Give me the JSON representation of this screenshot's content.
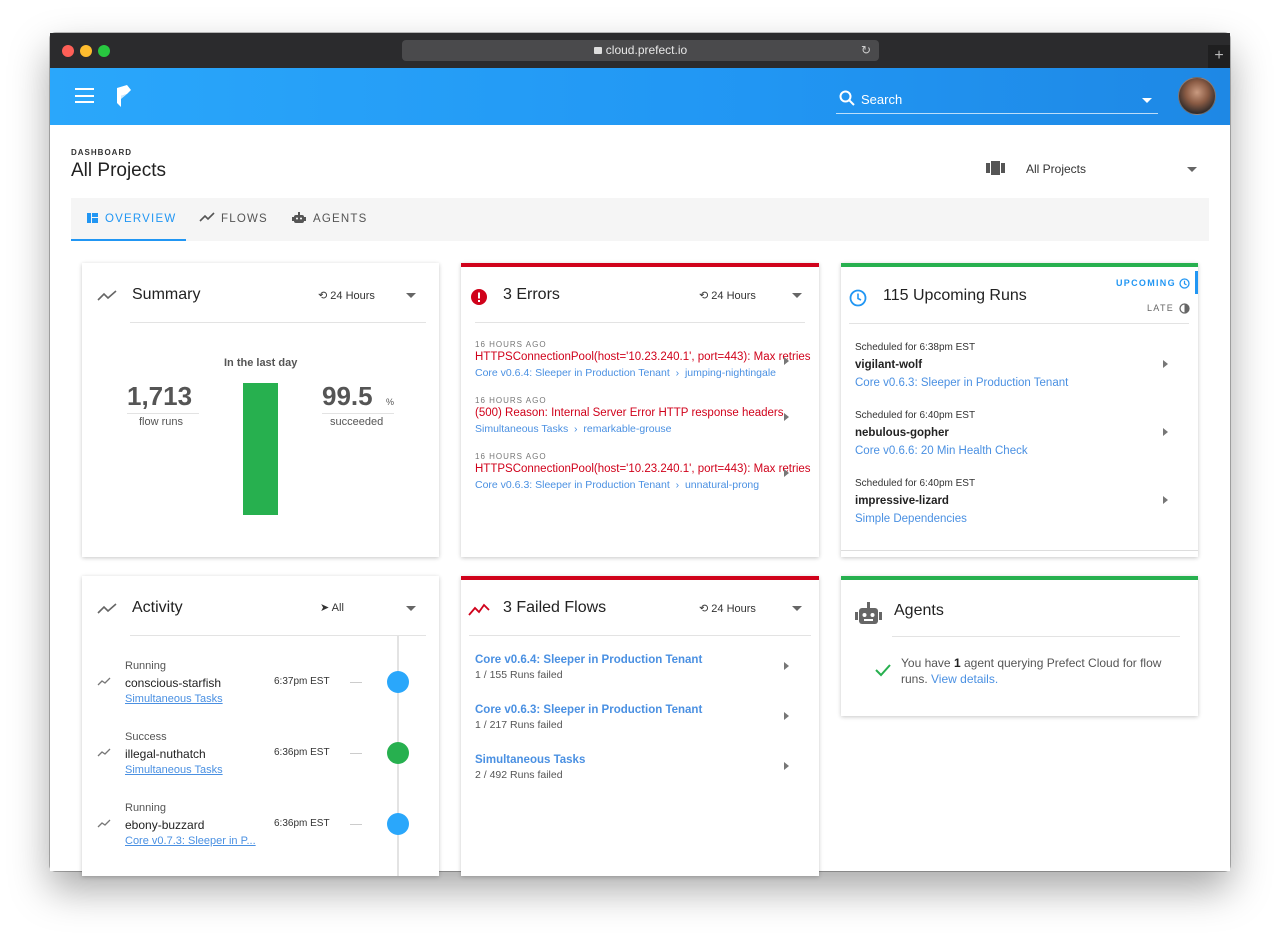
{
  "browser": {
    "url": "cloud.prefect.io",
    "reload_glyph": "↻",
    "newtab_glyph": "+"
  },
  "header": {
    "search_placeholder": "Search"
  },
  "page": {
    "breadcrumb": "DASHBOARD",
    "title": "All Projects",
    "project_selector": "All Projects"
  },
  "tabs": [
    {
      "label": "OVERVIEW",
      "icon": "dashboard-icon",
      "active": true
    },
    {
      "label": "FLOWS",
      "icon": "trending-icon",
      "active": false
    },
    {
      "label": "AGENTS",
      "icon": "robot-icon",
      "active": false
    }
  ],
  "summary": {
    "title": "Summary",
    "time_range": "24 Hours",
    "caption": "In the last day",
    "flow_runs": "1,713",
    "flow_runs_label": "flow runs",
    "success_pct": "99.5",
    "success_unit": "%",
    "success_label": "succeeded",
    "bar_fill": 0.995,
    "color": "#27b04f"
  },
  "errors": {
    "title": "3 Errors",
    "time_range": "24 Hours",
    "items": [
      {
        "ago": "16 HOURS AGO",
        "message": "HTTPSConnectionPool(host='10.23.240.1', port=443): Max retries",
        "flow": "Core v0.6.4: Sleeper in Production Tenant",
        "separator": "›",
        "run": "jumping-nightingale"
      },
      {
        "ago": "16 HOURS AGO",
        "message": "(500) Reason: Internal Server Error HTTP response headers",
        "flow": "Simultaneous Tasks",
        "separator": "›",
        "run": "remarkable-grouse"
      },
      {
        "ago": "16 HOURS AGO",
        "message": "HTTPSConnectionPool(host='10.23.240.1', port=443): Max retries",
        "flow": "Core v0.6.3: Sleeper in Production Tenant",
        "separator": "›",
        "run": "unnatural-prong"
      }
    ]
  },
  "upcoming": {
    "title": "115 Upcoming Runs",
    "tab_upcoming": "UPCOMING",
    "tab_late": "LATE",
    "items": [
      {
        "scheduled": "Scheduled for 6:38pm EST",
        "name": "vigilant-wolf",
        "flow": "Core v0.6.3: Sleeper in Production Tenant"
      },
      {
        "scheduled": "Scheduled for 6:40pm EST",
        "name": "nebulous-gopher",
        "flow": "Core v0.6.6: 20 Min Health Check"
      },
      {
        "scheduled": "Scheduled for 6:40pm EST",
        "name": "impressive-lizard",
        "flow": "Simple Dependencies"
      }
    ]
  },
  "activity": {
    "title": "Activity",
    "filter": "All",
    "items": [
      {
        "state": "Running",
        "name": "conscious-starfish",
        "flow": "Simultaneous Tasks",
        "time": "6:37pm EST",
        "color": "#2aa7fb"
      },
      {
        "state": "Success",
        "name": "illegal-nuthatch",
        "flow": "Simultaneous Tasks",
        "time": "6:36pm EST",
        "color": "#27b04f"
      },
      {
        "state": "Running",
        "name": "ebony-buzzard",
        "flow": "Core v0.7.3: Sleeper in P...",
        "time": "6:36pm EST",
        "color": "#2aa7fb"
      }
    ]
  },
  "failed": {
    "title": "3 Failed Flows",
    "time_range": "24 Hours",
    "items": [
      {
        "name": "Core v0.6.4: Sleeper in Production Tenant",
        "count": "1 / 155 Runs failed"
      },
      {
        "name": "Core v0.6.3: Sleeper in Production Tenant",
        "count": "1 / 217 Runs failed"
      },
      {
        "name": "Simultaneous Tasks",
        "count": "2 / 492 Runs failed"
      }
    ]
  },
  "agents": {
    "title": "Agents",
    "text_pre": "You have ",
    "count": "1",
    "text_post": " agent querying Prefect Cloud for flow runs. ",
    "link": "View details."
  },
  "colors": {
    "brand_blue": "#2196f3",
    "error_red": "#d0021b",
    "success_green": "#27b04f",
    "link_blue": "#4a90e2"
  }
}
